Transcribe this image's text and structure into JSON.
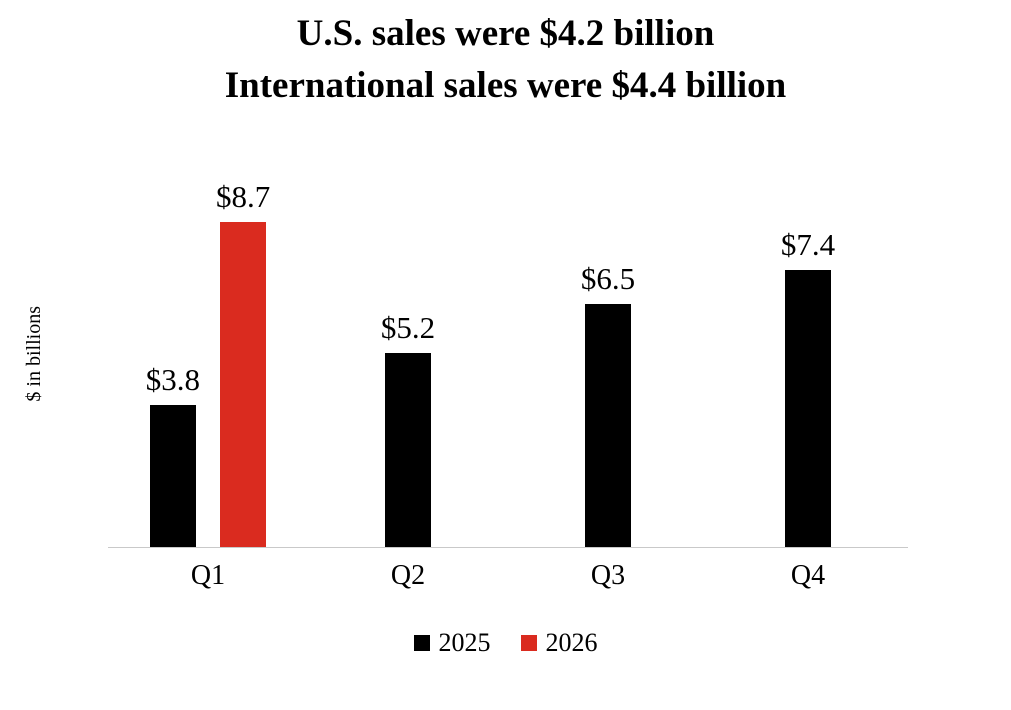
{
  "title": {
    "line1": "U.S. sales were $4.2 billion",
    "line2": "International sales were $4.4 billion"
  },
  "chart_data": {
    "type": "bar",
    "title": "U.S. sales were $4.2 billion / International sales were $4.4 billion",
    "categories": [
      "Q1",
      "Q2",
      "Q3",
      "Q4"
    ],
    "series": [
      {
        "name": "2025",
        "color": "#000000",
        "values": [
          3.8,
          5.2,
          6.5,
          7.4
        ]
      },
      {
        "name": "2026",
        "color": "#da2b1f",
        "values": [
          8.7,
          null,
          null,
          null
        ]
      }
    ],
    "data_labels": [
      [
        "$3.8",
        "$5.2",
        "$6.5",
        "$7.4"
      ],
      [
        "$8.7",
        "",
        "",
        ""
      ]
    ],
    "xlabel": "",
    "ylabel": "$ in billions",
    "ylim": [
      0,
      10
    ],
    "grid": false,
    "legend_position": "bottom",
    "legend": [
      "2025",
      "2026"
    ]
  },
  "colors": {
    "axis_line": "#c9c9c9",
    "bar_2025": "#000000",
    "bar_2026": "#da2b1f"
  }
}
